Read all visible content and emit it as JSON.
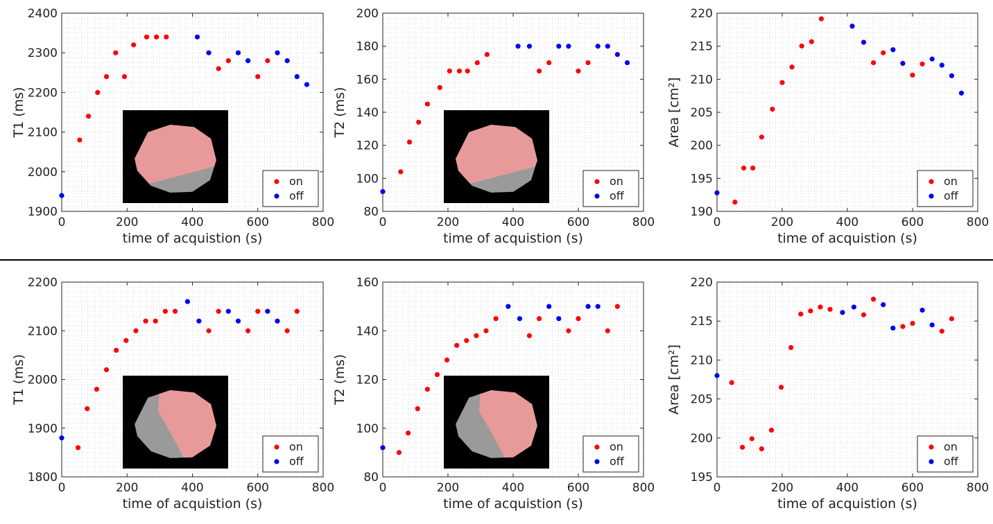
{
  "legend": {
    "on_label": "on",
    "off_label": "off"
  },
  "colors": {
    "on": "#ff0000",
    "off": "#0000ee",
    "grid": "#c8c8c8",
    "inset_bg": "#000000",
    "highlight": "#e89a9a"
  },
  "chart_data": [
    {
      "type": "scatter",
      "row": "top",
      "ylabel": "T1 (ms)",
      "xlabel": "time of acquistion (s)",
      "xlim": [
        0,
        800
      ],
      "ylim": [
        1900,
        2400
      ],
      "xticks": [
        "0",
        "200",
        "400",
        "600",
        "800"
      ],
      "yticks": [
        "1900",
        "2000",
        "2100",
        "2200",
        "2300",
        "2400"
      ],
      "inset": "brain-image-upper-region-highlighted",
      "series": [
        {
          "name": "on",
          "x": [
            55,
            82,
            110,
            137,
            165,
            192,
            220,
            260,
            290,
            320,
            480,
            510,
            600,
            630
          ],
          "y": [
            2080,
            2140,
            2200,
            2240,
            2300,
            2240,
            2320,
            2340,
            2340,
            2340,
            2260,
            2280,
            2240,
            2280
          ]
        },
        {
          "name": "off",
          "x": [
            0,
            415,
            450,
            540,
            570,
            660,
            690,
            720,
            750
          ],
          "y": [
            1940,
            2340,
            2300,
            2300,
            2280,
            2300,
            2280,
            2240,
            2220
          ]
        }
      ]
    },
    {
      "type": "scatter",
      "row": "top",
      "ylabel": "T2 (ms)",
      "xlabel": "time of acquistion (s)",
      "xlim": [
        0,
        800
      ],
      "ylim": [
        80,
        200
      ],
      "xticks": [
        "0",
        "200",
        "400",
        "600",
        "800"
      ],
      "yticks": [
        "80",
        "100",
        "120",
        "140",
        "160",
        "180",
        "200"
      ],
      "inset": "brain-image-upper-region-highlighted",
      "series": [
        {
          "name": "on",
          "x": [
            55,
            82,
            110,
            137,
            175,
            205,
            235,
            260,
            290,
            320,
            480,
            510,
            600,
            630
          ],
          "y": [
            104,
            122,
            134,
            145,
            155,
            165,
            165,
            165,
            170,
            175,
            165,
            170,
            165,
            170
          ]
        },
        {
          "name": "off",
          "x": [
            0,
            415,
            450,
            540,
            570,
            660,
            690,
            720,
            750
          ],
          "y": [
            92,
            180,
            180,
            180,
            180,
            180,
            180,
            175,
            170
          ]
        }
      ]
    },
    {
      "type": "scatter",
      "row": "top",
      "ylabel": "Area [cm²]",
      "xlabel": "time of acquistion (s)",
      "xlim": [
        0,
        800
      ],
      "ylim": [
        190,
        222
      ],
      "xticks": [
        "0",
        "200",
        "400",
        "600",
        "800"
      ],
      "yticks": [
        "190",
        "195",
        "200",
        "205",
        "210",
        "215",
        "220"
      ],
      "series": [
        {
          "name": "on",
          "x": [
            55,
            82,
            110,
            137,
            170,
            200,
            230,
            260,
            290,
            320,
            480,
            510,
            600,
            630
          ],
          "y": [
            191.5,
            197,
            197,
            202,
            206.5,
            210.8,
            213.3,
            216.7,
            217.4,
            221.1,
            214,
            215.6,
            212,
            213.8
          ]
        },
        {
          "name": "off",
          "x": [
            0,
            415,
            450,
            540,
            570,
            660,
            690,
            720,
            750
          ],
          "y": [
            193,
            219.9,
            217.3,
            216.1,
            213.9,
            214.6,
            213.6,
            211.9,
            209.1
          ]
        }
      ]
    },
    {
      "type": "scatter",
      "row": "bottom",
      "ylabel": "T1 (ms)",
      "xlabel": "time of acquistion (s)",
      "xlim": [
        0,
        800
      ],
      "ylim": [
        1800,
        2200
      ],
      "xticks": [
        "0",
        "200",
        "400",
        "600",
        "800"
      ],
      "yticks": [
        "1800",
        "1900",
        "2000",
        "2100",
        "2200"
      ],
      "inset": "brain-image-right-region-highlighted",
      "series": [
        {
          "name": "on",
          "x": [
            50,
            78,
            107,
            137,
            167,
            197,
            227,
            257,
            287,
            317,
            347,
            450,
            480,
            570,
            600,
            690,
            720
          ],
          "y": [
            1860,
            1940,
            1980,
            2020,
            2060,
            2080,
            2100,
            2120,
            2120,
            2140,
            2140,
            2100,
            2140,
            2100,
            2140,
            2100,
            2140
          ]
        },
        {
          "name": "off",
          "x": [
            0,
            385,
            420,
            510,
            540,
            630,
            660
          ],
          "y": [
            1880,
            2160,
            2120,
            2140,
            2120,
            2140,
            2120
          ]
        }
      ]
    },
    {
      "type": "scatter",
      "row": "bottom",
      "ylabel": "T2 (ms)",
      "xlabel": "time of acquistion (s)",
      "xlim": [
        0,
        800
      ],
      "ylim": [
        80,
        160
      ],
      "xticks": [
        "0",
        "200",
        "400",
        "600",
        "800"
      ],
      "yticks": [
        "80",
        "100",
        "120",
        "140",
        "160"
      ],
      "inset": "brain-image-right-region-highlighted",
      "series": [
        {
          "name": "on",
          "x": [
            50,
            78,
            107,
            137,
            167,
            197,
            227,
            257,
            287,
            317,
            347,
            450,
            480,
            570,
            600,
            690,
            720
          ],
          "y": [
            90,
            98,
            108,
            116,
            122,
            128,
            134,
            136,
            138,
            140,
            145,
            138,
            145,
            140,
            145,
            140,
            150
          ]
        },
        {
          "name": "off",
          "x": [
            0,
            385,
            420,
            510,
            540,
            630,
            660
          ],
          "y": [
            92,
            150,
            145,
            150,
            145,
            150,
            150
          ]
        }
      ]
    },
    {
      "type": "scatter",
      "row": "bottom",
      "ylabel": "Area [cm²]",
      "xlabel": "time of acquistion (s)",
      "xlim": [
        0,
        800
      ],
      "ylim": [
        195,
        220
      ],
      "xticks": [
        "0",
        "200",
        "400",
        "600",
        "800"
      ],
      "yticks": [
        "195",
        "200",
        "205",
        "210",
        "215",
        "220"
      ],
      "series": [
        {
          "name": "on",
          "x": [
            45,
            78,
            107,
            137,
            167,
            197,
            227,
            257,
            287,
            317,
            347,
            450,
            480,
            570,
            600,
            690,
            720
          ],
          "y": [
            207.1,
            198.8,
            199.9,
            198.6,
            201,
            206.5,
            211.6,
            215.9,
            216.3,
            216.8,
            216.5,
            215.8,
            217.8,
            214.3,
            214.7,
            213.7,
            215.3
          ]
        },
        {
          "name": "off",
          "x": [
            0,
            385,
            420,
            510,
            540,
            630,
            660
          ],
          "y": [
            208,
            216.1,
            216.8,
            217.1,
            214.1,
            216.4,
            214.5
          ]
        }
      ]
    }
  ]
}
